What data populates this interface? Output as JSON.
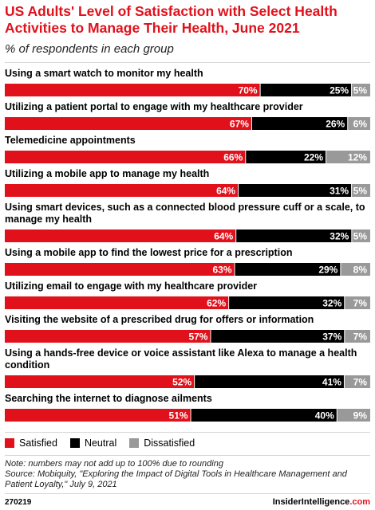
{
  "header": {
    "title": "US Adults' Level of Satisfaction with Select Health Activities to Manage Their Health, June 2021",
    "subtitle": "% of respondents in each group"
  },
  "colors": {
    "satisfied": "#e0111b",
    "neutral": "#000000",
    "dissatisfied": "#999999",
    "accent": "#e0111b"
  },
  "chart_data": {
    "type": "bar",
    "orientation": "horizontal",
    "stacked": true,
    "unit": "%",
    "xlim": [
      0,
      100
    ],
    "grid": false,
    "legend_position": "bottom-left",
    "categories": [
      "Using a smart watch to monitor my health",
      "Utilizing a patient portal to engage with my healthcare provider",
      "Telemedicine appointments",
      "Utilizing a mobile app to manage my health",
      "Using smart devices, such as a connected blood pressure cuff or a scale, to manage my health",
      "Using a mobile app to find the lowest price for a prescription",
      "Utilizing email to engage with my healthcare provider",
      "Visiting the website of a prescribed drug for offers or information",
      "Using a hands-free device or voice assistant like Alexa to manage a health condition",
      "Searching the internet to diagnose ailments"
    ],
    "series": [
      {
        "name": "Satisfied",
        "values": [
          70,
          67,
          66,
          64,
          64,
          63,
          62,
          57,
          52,
          51
        ]
      },
      {
        "name": "Neutral",
        "values": [
          25,
          26,
          22,
          31,
          32,
          29,
          32,
          37,
          41,
          40
        ]
      },
      {
        "name": "Dissatisfied",
        "values": [
          5,
          6,
          12,
          5,
          5,
          8,
          7,
          7,
          7,
          9
        ]
      }
    ]
  },
  "legend": {
    "satisfied": "Satisfied",
    "neutral": "Neutral",
    "dissatisfied": "Dissatisfied"
  },
  "footer": {
    "note": "Note: numbers may not add up to 100% due to rounding",
    "source": "Source: Mobiquity, \"Exploring the Impact of Digital Tools in Healthcare Management and Patient Loyalty,\" July 9, 2021",
    "chart_id": "270219",
    "brand_main": "InsiderIntelligence",
    "brand_suffix": ".com"
  }
}
